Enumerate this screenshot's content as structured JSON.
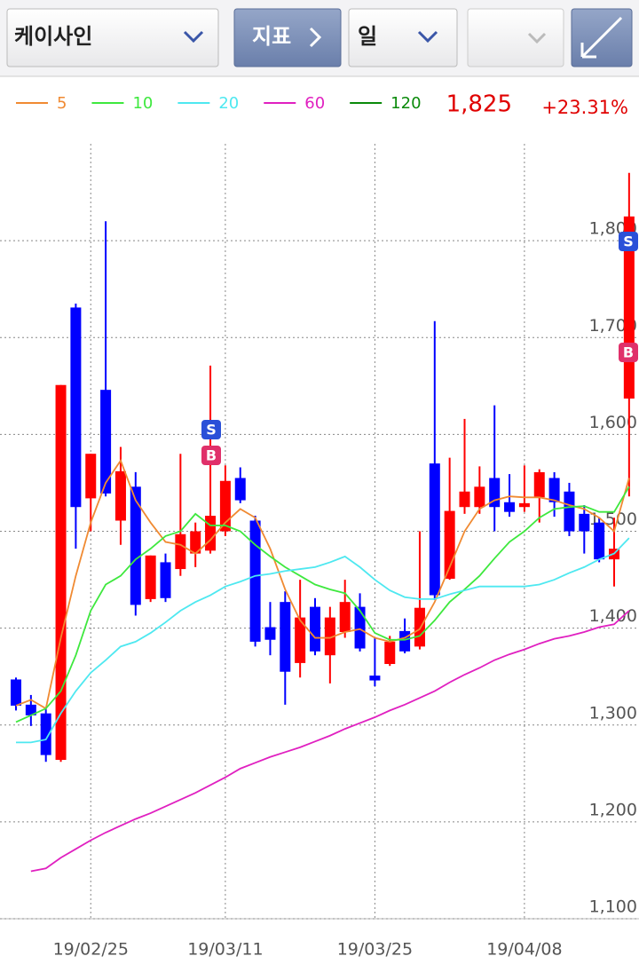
{
  "toolbar": {
    "stock": "케이사인",
    "indicator": "지표",
    "period": "일"
  },
  "quote": {
    "price": "1,825",
    "change": "+23.31%"
  },
  "signals": [
    "S",
    "B",
    "S",
    "B"
  ],
  "chart_data": {
    "type": "candlestick",
    "categories": [
      null,
      null,
      null,
      null,
      null,
      "19/02/25",
      null,
      null,
      null,
      null,
      null,
      null,
      null,
      null,
      "19/03/11",
      null,
      null,
      null,
      null,
      null,
      null,
      null,
      null,
      null,
      "19/03/25",
      null,
      null,
      null,
      null,
      null,
      null,
      null,
      null,
      null,
      "19/04/08",
      null,
      null,
      null,
      null,
      null,
      null,
      null
    ],
    "open": [
      1347,
      1321,
      1312,
      1264,
      1731,
      1534,
      1646,
      1511,
      1546,
      1430,
      1468,
      1461,
      1477,
      1480,
      1500,
      1555,
      1511,
      1401,
      1427,
      1364,
      1422,
      1372,
      1396,
      1422,
      1351,
      1363,
      1397,
      1381,
      1570,
      1451,
      1525,
      1525,
      1555,
      1530,
      1525,
      1535,
      1555,
      1541,
      1518,
      1509,
      1471,
      1637
    ],
    "high": [
      1349,
      1331,
      1317,
      1651,
      1735,
      1580,
      1820,
      1587,
      1561,
      1475,
      1477,
      1580,
      1509,
      1671,
      1568,
      1566,
      1516,
      1427,
      1438,
      1450,
      1431,
      1422,
      1450,
      1436,
      1390,
      1392,
      1410,
      1500,
      1717,
      1576,
      1616,
      1567,
      1630,
      1559,
      1568,
      1564,
      1561,
      1550,
      1527,
      1514,
      1514,
      1870
    ],
    "low": [
      1315,
      1299,
      1262,
      1262,
      1482,
      1500,
      1536,
      1486,
      1413,
      1427,
      1427,
      1454,
      1463,
      1477,
      1495,
      1529,
      1381,
      1372,
      1321,
      1349,
      1372,
      1343,
      1390,
      1376,
      1340,
      1361,
      1374,
      1378,
      1429,
      1450,
      1518,
      1518,
      1500,
      1515,
      1520,
      1509,
      1515,
      1495,
      1477,
      1468,
      1443,
      1536
    ],
    "close": [
      1320,
      1310,
      1269,
      1651,
      1525,
      1580,
      1539,
      1562,
      1424,
      1475,
      1431,
      1497,
      1500,
      1516,
      1552,
      1532,
      1386,
      1388,
      1355,
      1411,
      1376,
      1411,
      1427,
      1379,
      1346,
      1386,
      1376,
      1421,
      1434,
      1521,
      1541,
      1546,
      1525,
      1520,
      1529,
      1561,
      1530,
      1500,
      1500,
      1471,
      1482,
      1825
    ],
    "up_color": "#ff0000",
    "down_color": "#0000ff",
    "series": [
      {
        "name": "5",
        "color": "#f08a32",
        "values": [
          1320,
          1326,
          1317,
          1390,
          1454,
          1509,
          1550,
          1573,
          1532,
          1509,
          1489,
          1486,
          1477,
          1491,
          1509,
          1523,
          1514,
          1482,
          1440,
          1408,
          1390,
          1390,
          1396,
          1399,
          1390,
          1386,
          1390,
          1399,
          1427,
          1463,
          1500,
          1523,
          1532,
          1536,
          1535,
          1535,
          1532,
          1527,
          1523,
          1514,
          1500,
          1555
        ]
      },
      {
        "name": "10",
        "color": "#3ee83e",
        "values": [
          1303,
          1310,
          1317,
          1335,
          1372,
          1418,
          1445,
          1454,
          1471,
          1482,
          1495,
          1500,
          1518,
          1506,
          1506,
          1500,
          1486,
          1474,
          1463,
          1454,
          1445,
          1440,
          1436,
          1418,
          1395,
          1388,
          1388,
          1392,
          1408,
          1427,
          1440,
          1454,
          1472,
          1489,
          1500,
          1514,
          1523,
          1525,
          1526,
          1520,
          1520,
          1546
        ]
      },
      {
        "name": "20",
        "color": "#4ee8f0",
        "values": [
          1282,
          1282,
          1285,
          1312,
          1335,
          1354,
          1367,
          1381,
          1386,
          1395,
          1406,
          1418,
          1427,
          1434,
          1443,
          1448,
          1454,
          1456,
          1459,
          1461,
          1463,
          1468,
          1474,
          1463,
          1450,
          1439,
          1432,
          1430,
          1430,
          1435,
          1439,
          1443,
          1443,
          1443,
          1443,
          1445,
          1450,
          1457,
          1463,
          1471,
          1477,
          1493
        ]
      },
      {
        "name": "60",
        "color": "#e020c0",
        "values": [
          null,
          1149,
          1152,
          1163,
          1172,
          1181,
          1189,
          1196,
          1203,
          1209,
          1216,
          1223,
          1230,
          1238,
          1246,
          1255,
          1261,
          1267,
          1272,
          1277,
          1283,
          1289,
          1296,
          1302,
          1308,
          1315,
          1321,
          1328,
          1335,
          1344,
          1352,
          1359,
          1367,
          1373,
          1378,
          1384,
          1389,
          1392,
          1396,
          1401,
          1404,
          1418
        ]
      },
      {
        "name": "120",
        "color": "#0a8a0a",
        "values": [
          null,
          null,
          null,
          null,
          null,
          null,
          null,
          null,
          null,
          null,
          null,
          null,
          null,
          null,
          null,
          null,
          null,
          null,
          null,
          null,
          null,
          null,
          null,
          null,
          null,
          null,
          null,
          null,
          null,
          null,
          null,
          null,
          null,
          null,
          null,
          null,
          null,
          null,
          null,
          null,
          null,
          null
        ]
      }
    ],
    "ylim": [
      1100,
      1900
    ],
    "yticks": [
      {
        "value": 1100,
        "label": "1,100"
      },
      {
        "value": 1200,
        "label": "1,200"
      },
      {
        "value": 1300,
        "label": "1,300"
      },
      {
        "value": 1400,
        "label": "1,400"
      },
      {
        "value": 1500,
        "label": "1,500"
      },
      {
        "value": 1600,
        "label": "1,600"
      },
      {
        "value": 1700,
        "label": "1,700"
      },
      {
        "value": 1800,
        "label": "1,800"
      }
    ],
    "grid": true
  }
}
